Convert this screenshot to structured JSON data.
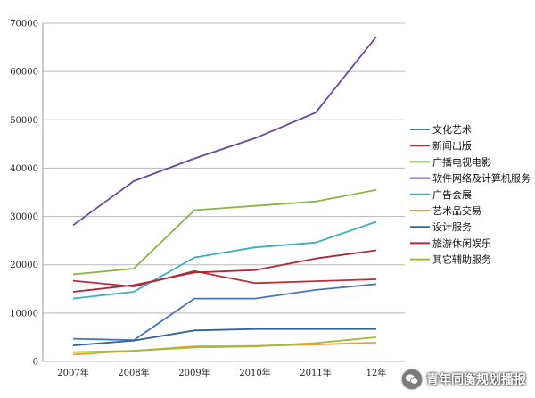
{
  "chart_data": {
    "type": "line",
    "title": "",
    "xlabel": "",
    "ylabel": "",
    "categories": [
      "2007年",
      "2008年",
      "2009年",
      "2010年",
      "2011年",
      "12年"
    ],
    "ylim": [
      0,
      70000
    ],
    "yticks": [
      "0",
      "10000",
      "20000",
      "30000",
      "40000",
      "50000",
      "60000",
      "70000"
    ],
    "grid": "horizontal",
    "legend_position": "right",
    "series": [
      {
        "name": "文化艺术",
        "color": "#4a74b6",
        "values": [
          4700,
          4400,
          13000,
          13000,
          14800,
          16000
        ]
      },
      {
        "name": "新闻出版",
        "color": "#b5303a",
        "values": [
          16700,
          15500,
          18700,
          16200,
          16600,
          17000
        ]
      },
      {
        "name": "广播电视电影",
        "color": "#8db344",
        "values": [
          18000,
          19200,
          31300,
          32200,
          33100,
          35500
        ]
      },
      {
        "name": "软件网络及计算机服务",
        "color": "#6a4a9c",
        "values": [
          28200,
          37300,
          42000,
          46200,
          51500,
          67200
        ]
      },
      {
        "name": "广告会展",
        "color": "#3aaec3",
        "values": [
          13000,
          14400,
          21500,
          23600,
          24600,
          28900
        ]
      },
      {
        "name": "艺术品交易",
        "color": "#f39a3a",
        "values": [
          1400,
          2200,
          3100,
          3200,
          3500,
          3900
        ]
      },
      {
        "name": "设计服务",
        "color": "#35639e",
        "values": [
          3300,
          4300,
          6400,
          6700,
          6700,
          6700
        ]
      },
      {
        "name": "旅游休闲娱乐",
        "color": "#b0263a",
        "values": [
          14400,
          15800,
          18400,
          18900,
          21300,
          23000
        ]
      },
      {
        "name": "其它辅助服务",
        "color": "#9bbd3a",
        "values": [
          1900,
          2200,
          2900,
          3100,
          3800,
          5000
        ]
      }
    ]
  },
  "watermark": {
    "text": "青年同衡规划播报",
    "icon": "wechat-icon"
  }
}
